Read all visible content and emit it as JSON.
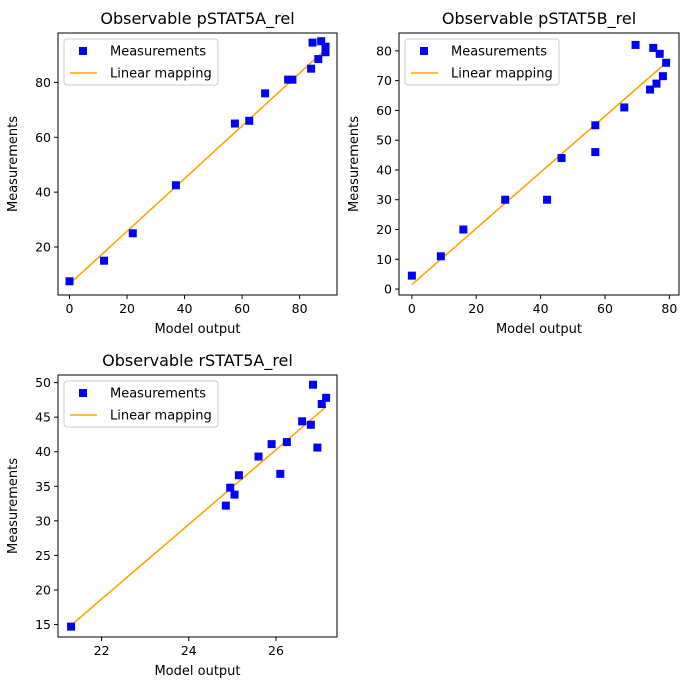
{
  "chart_data": [
    {
      "type": "scatter",
      "title": "Observable pSTAT5A_rel",
      "xlabel": "Model output",
      "ylabel": "Measurements",
      "xlim": [
        -4,
        93
      ],
      "ylim": [
        2.5,
        98
      ],
      "xticks": [
        0,
        20,
        40,
        60,
        80
      ],
      "yticks": [
        20,
        40,
        60,
        80
      ],
      "legend": "top-left",
      "grid": false,
      "series": [
        {
          "name": "Measurements",
          "kind": "markers",
          "marker": "square",
          "color": "#0000ff",
          "points": [
            [
              0,
              7.5
            ],
            [
              12,
              15
            ],
            [
              22,
              25
            ],
            [
              37,
              42.5
            ],
            [
              57.5,
              65
            ],
            [
              62.5,
              66
            ],
            [
              68,
              76
            ],
            [
              76,
              81
            ],
            [
              77.5,
              81
            ],
            [
              84,
              85
            ],
            [
              84.5,
              94.5
            ],
            [
              86.5,
              88.5
            ],
            [
              87.5,
              95
            ],
            [
              89,
              91
            ],
            [
              89,
              93
            ]
          ]
        },
        {
          "name": "Linear mapping",
          "kind": "line",
          "color": "#ffa500",
          "points": [
            [
              0,
              6.5
            ],
            [
              89,
              92
            ]
          ]
        }
      ]
    },
    {
      "type": "scatter",
      "title": "Observable pSTAT5B_rel",
      "xlabel": "Model output",
      "ylabel": "Measurements",
      "xlim": [
        -4,
        83
      ],
      "ylim": [
        -2,
        86
      ],
      "xticks": [
        0,
        20,
        40,
        60,
        80
      ],
      "yticks": [
        0,
        10,
        20,
        30,
        40,
        50,
        60,
        70,
        80
      ],
      "legend": "top-left",
      "grid": false,
      "series": [
        {
          "name": "Measurements",
          "kind": "markers",
          "marker": "square",
          "color": "#0000ff",
          "points": [
            [
              0,
              4.5
            ],
            [
              9,
              11
            ],
            [
              16,
              20
            ],
            [
              29,
              30
            ],
            [
              42,
              30
            ],
            [
              46.5,
              44
            ],
            [
              57,
              55
            ],
            [
              57,
              46
            ],
            [
              66,
              61
            ],
            [
              69.5,
              82
            ],
            [
              74,
              67
            ],
            [
              75,
              81
            ],
            [
              76,
              69
            ],
            [
              77,
              79
            ],
            [
              78,
              71.5
            ],
            [
              79,
              76
            ]
          ]
        },
        {
          "name": "Linear mapping",
          "kind": "line",
          "color": "#ffa500",
          "points": [
            [
              0,
              1.5
            ],
            [
              79,
              76
            ]
          ]
        }
      ]
    },
    {
      "type": "scatter",
      "title": "Observable rSTAT5A_rel",
      "xlabel": "Model output",
      "ylabel": "Measurements",
      "xlim": [
        21.0,
        27.4
      ],
      "ylim": [
        13.2,
        51.1
      ],
      "xticks": [
        22,
        24,
        26
      ],
      "yticks": [
        15,
        20,
        25,
        30,
        35,
        40,
        45,
        50
      ],
      "legend": "top-left",
      "grid": false,
      "series": [
        {
          "name": "Measurements",
          "kind": "markers",
          "marker": "square",
          "color": "#0000ff",
          "points": [
            [
              21.3,
              14.7
            ],
            [
              24.85,
              32.2
            ],
            [
              24.95,
              34.8
            ],
            [
              25.05,
              33.8
            ],
            [
              25.15,
              36.6
            ],
            [
              25.6,
              39.3
            ],
            [
              25.9,
              41.1
            ],
            [
              26.1,
              36.8
            ],
            [
              26.25,
              41.4
            ],
            [
              26.6,
              44.4
            ],
            [
              26.8,
              43.9
            ],
            [
              26.85,
              49.7
            ],
            [
              26.95,
              40.6
            ],
            [
              27.05,
              46.9
            ],
            [
              27.15,
              47.8
            ]
          ]
        },
        {
          "name": "Linear mapping",
          "kind": "line",
          "color": "#ffa500",
          "points": [
            [
              21.3,
              14.9
            ],
            [
              27.15,
              46.5
            ]
          ]
        }
      ]
    }
  ]
}
